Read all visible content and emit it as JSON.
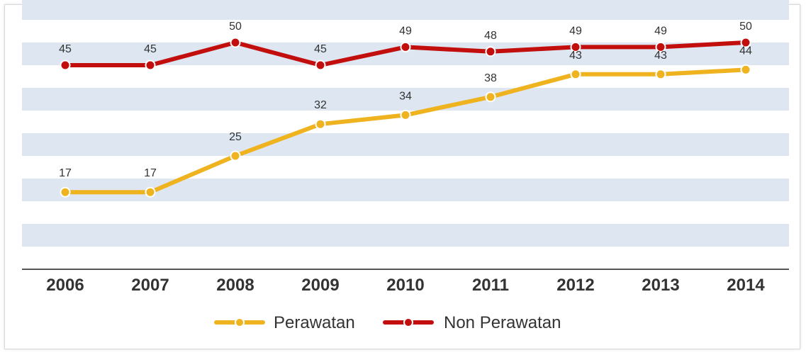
{
  "chart_data": {
    "type": "line",
    "categories": [
      "2006",
      "2007",
      "2008",
      "2009",
      "2010",
      "2011",
      "2012",
      "2013",
      "2014"
    ],
    "series": [
      {
        "name": "Perawatan",
        "values": [
          17,
          17,
          25,
          32,
          34,
          38,
          43,
          43,
          44
        ],
        "color": "#efb320"
      },
      {
        "name": "Non Perawatan",
        "values": [
          45,
          45,
          50,
          45,
          49,
          48,
          49,
          49,
          50
        ],
        "color": "#c30e0e"
      }
    ],
    "title": "",
    "xlabel": "",
    "ylabel": "",
    "ylim": [
      0,
      55
    ],
    "grid": "horizontal bands",
    "band_color": "#dde6f1",
    "legend": "bottom-center"
  }
}
